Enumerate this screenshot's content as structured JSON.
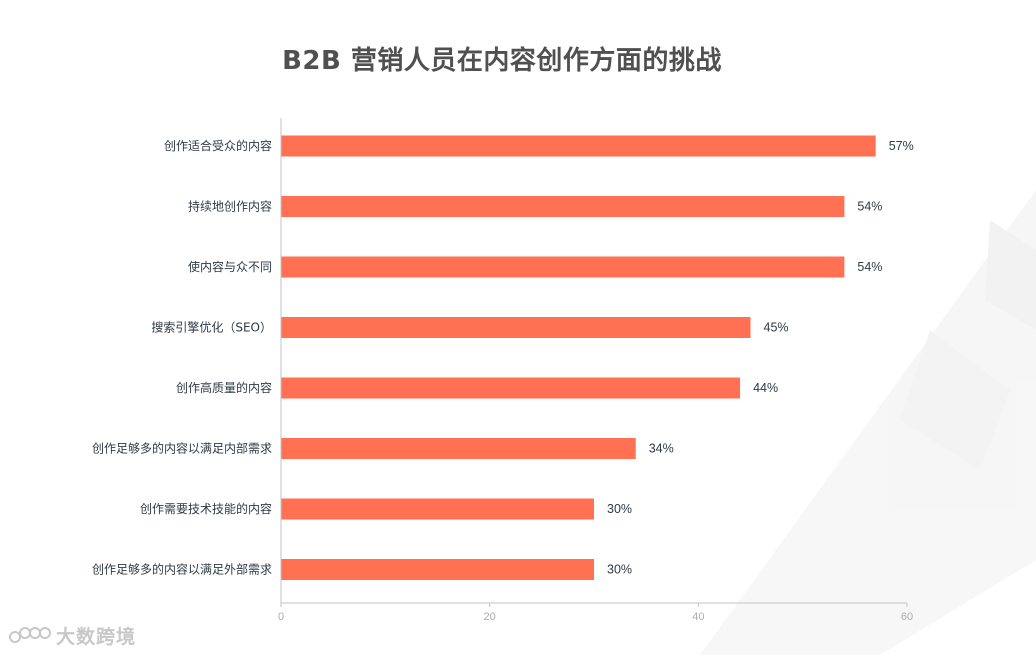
{
  "chart_data": {
    "type": "bar",
    "orientation": "horizontal",
    "title": "B2B 营销人员在内容创作方面的挑战",
    "categories": [
      "创作适合受众的内容",
      "持续地创作内容",
      "使内容与众不同",
      "搜索引擎优化（SEO）",
      "创作高质量的内容",
      "创作足够多的内容以满足内部需求",
      "创作需要技术技能的内容",
      "创作足够多的内容以满足外部需求"
    ],
    "values": [
      57,
      54,
      54,
      45,
      44,
      34,
      30,
      30
    ],
    "value_labels": [
      "57%",
      "54%",
      "54%",
      "45%",
      "44%",
      "34%",
      "30%",
      "30%"
    ],
    "xlim": [
      0,
      60
    ],
    "xticks": [
      0,
      20,
      40,
      60
    ],
    "xlabel": "",
    "ylabel": "",
    "bar_color": "#ff7152",
    "grid": false,
    "legend": "none"
  },
  "watermark": {
    "text": "大数跨境"
  }
}
